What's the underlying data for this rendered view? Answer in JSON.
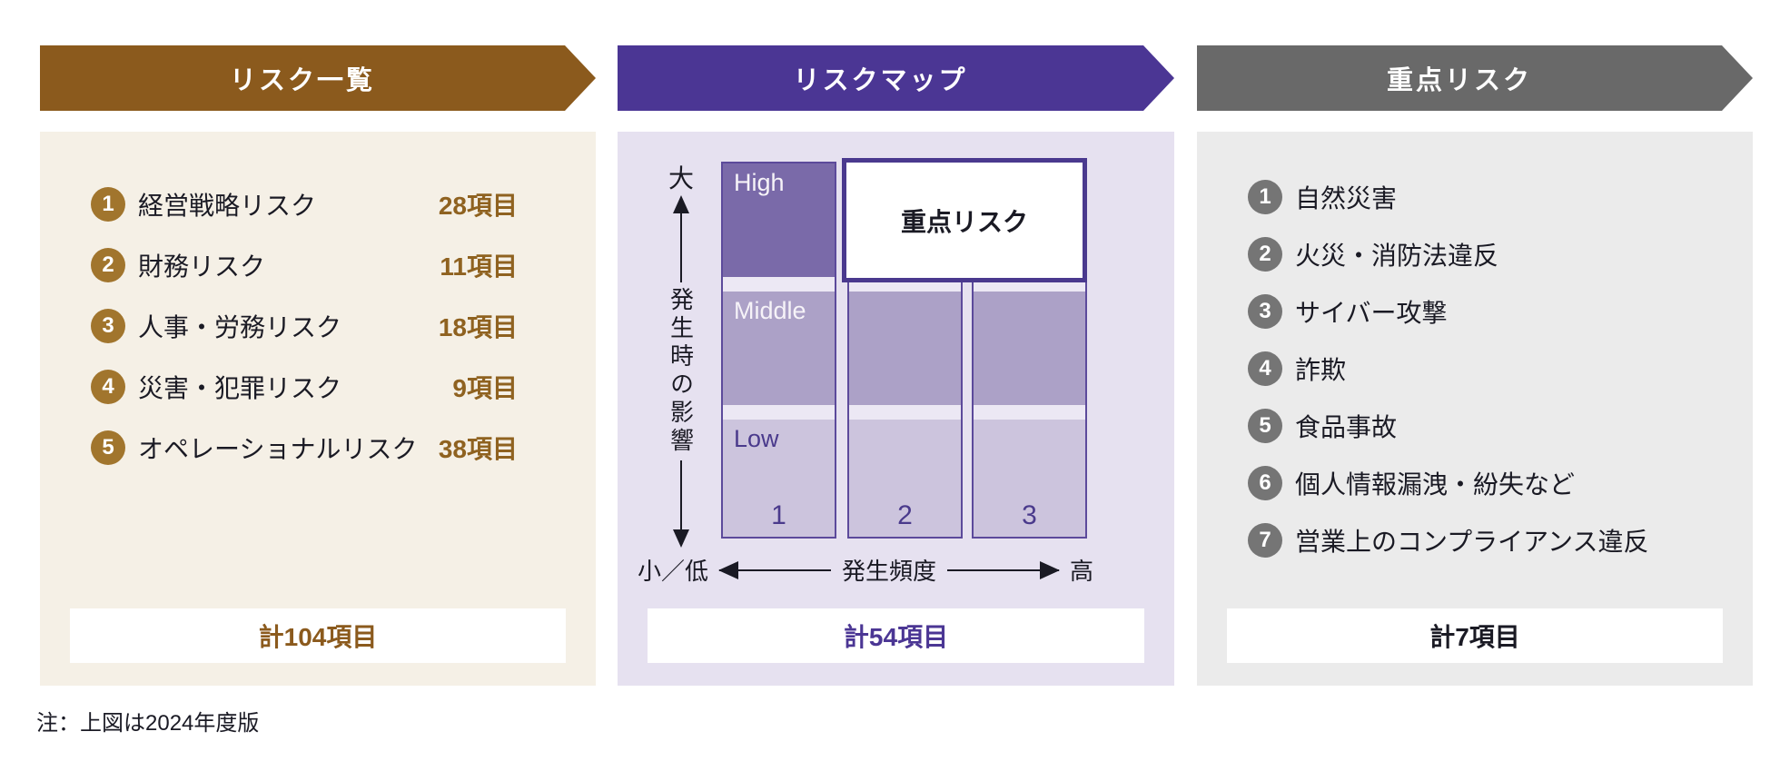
{
  "colors": {
    "stage1_accent": "#8B5A1D",
    "stage1_bg": "#F5F0E6",
    "stage1_badge": "#A1752D",
    "stage1_count_text": "#8F6220",
    "stage2_accent": "#4B3694",
    "stage2_bg": "#E6E1F0",
    "map_high_cell": "#7A6AA9",
    "map_middle_cell": "#ACA1C7",
    "map_low_cell": "#CCC4DD",
    "map_cell_border": "#5C4A9B",
    "priority_box_border": "#4A398E",
    "stage3_accent": "#696969",
    "stage3_bg": "#EBEBEB",
    "stage3_badge": "#757575",
    "text": "#1A1A24"
  },
  "risk_list": {
    "header": "リスク一覧",
    "items": [
      {
        "num": "1",
        "label": "経営戦略リスク",
        "count": "28項目"
      },
      {
        "num": "2",
        "label": "財務リスク",
        "count": "11項目"
      },
      {
        "num": "3",
        "label": "人事・労務リスク",
        "count": "18項目"
      },
      {
        "num": "4",
        "label": "災害・犯罪リスク",
        "count": "9項目"
      },
      {
        "num": "5",
        "label": "オペレーショナルリスク",
        "count": "38項目"
      }
    ],
    "total": "計104項目"
  },
  "risk_map": {
    "header": "リスクマップ",
    "y_axis": {
      "high_label": "大",
      "title": "発生時の影響"
    },
    "x_axis": {
      "low_label": "小／低",
      "title": "発生頻度",
      "high_label": "高"
    },
    "row_labels": [
      "High",
      "Middle",
      "Low"
    ],
    "column_labels": [
      "1",
      "2",
      "3"
    ],
    "priority_box_label": "重点リスク",
    "total": "計54項目"
  },
  "priority_risks": {
    "header": "重点リスク",
    "items": [
      {
        "num": "1",
        "label": "自然災害"
      },
      {
        "num": "2",
        "label": "火災・消防法違反"
      },
      {
        "num": "3",
        "label": "サイバー攻撃"
      },
      {
        "num": "4",
        "label": "詐欺"
      },
      {
        "num": "5",
        "label": "食品事故"
      },
      {
        "num": "6",
        "label": "個人情報漏洩・紛失など"
      },
      {
        "num": "7",
        "label": "営業上のコンプライアンス違反"
      }
    ],
    "total": "計7項目"
  },
  "note": "注：上図は2024年度版"
}
